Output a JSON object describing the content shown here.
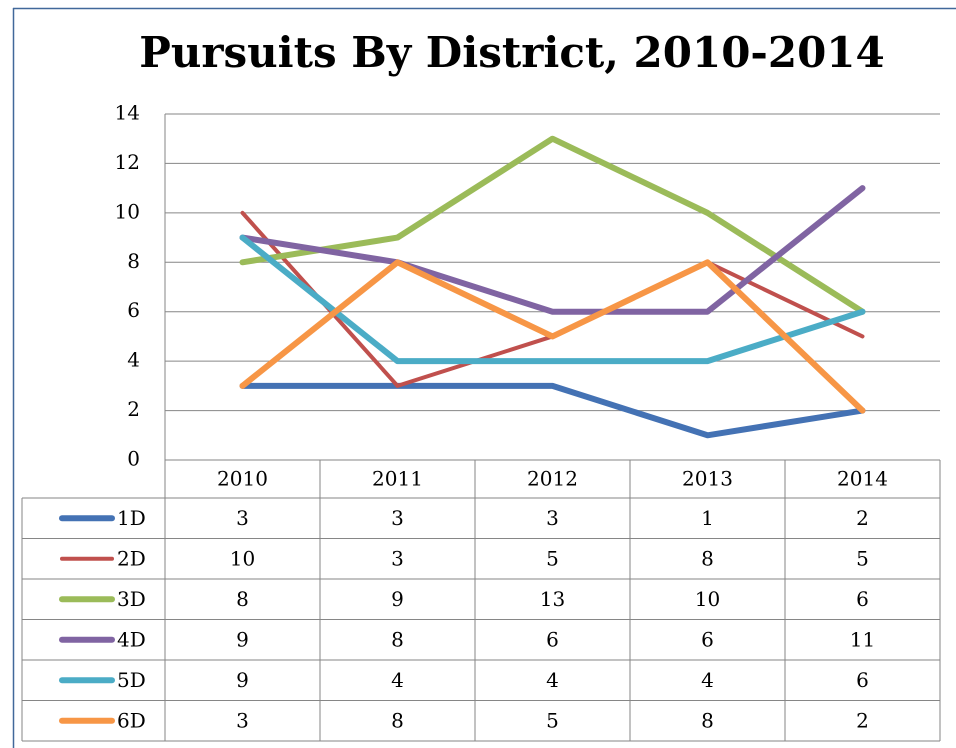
{
  "chart_data": {
    "type": "line",
    "title": "Pursuits By District, 2010-2014",
    "categories": [
      "2010",
      "2011",
      "2012",
      "2013",
      "2014"
    ],
    "series": [
      {
        "name": "1D",
        "color": "#4472b4",
        "values": [
          3,
          3,
          3,
          1,
          2
        ]
      },
      {
        "name": "2D",
        "color": "#c0504d",
        "values": [
          10,
          3,
          5,
          8,
          5
        ]
      },
      {
        "name": "3D",
        "color": "#9bbb59",
        "values": [
          8,
          9,
          13,
          10,
          6
        ]
      },
      {
        "name": "4D",
        "color": "#8064a2",
        "values": [
          9,
          8,
          6,
          6,
          11
        ]
      },
      {
        "name": "5D",
        "color": "#4bacc6",
        "values": [
          9,
          4,
          4,
          4,
          6
        ]
      },
      {
        "name": "6D",
        "color": "#f79646",
        "values": [
          3,
          8,
          5,
          8,
          2
        ]
      }
    ],
    "ylim": [
      0,
      14
    ],
    "yticks": [
      0,
      2,
      4,
      6,
      8,
      10,
      12,
      14
    ],
    "grid": true
  }
}
